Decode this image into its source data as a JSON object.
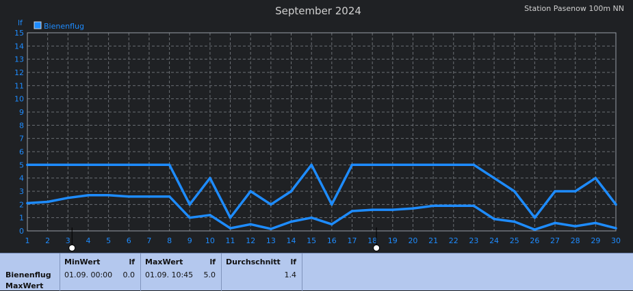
{
  "header": {
    "title": "September 2024",
    "station": "Station Pasenow 100m NN"
  },
  "chart_data": {
    "type": "line",
    "ylabel": "lf",
    "ylim": [
      0,
      15
    ],
    "y_ticks": [
      0,
      1,
      2,
      3,
      4,
      5,
      6,
      7,
      8,
      9,
      10,
      11,
      12,
      13,
      14,
      15
    ],
    "xlim": [
      1,
      30
    ],
    "x_ticks": [
      1,
      2,
      3,
      4,
      5,
      6,
      7,
      8,
      9,
      10,
      11,
      12,
      13,
      14,
      15,
      16,
      17,
      18,
      19,
      20,
      21,
      22,
      23,
      24,
      25,
      26,
      27,
      28,
      29,
      30
    ],
    "grid": true,
    "legend": {
      "entries": [
        "Bienenflug"
      ],
      "position": "top-left"
    },
    "series": [
      {
        "name": "Bienenflug",
        "x": [
          1,
          2,
          3,
          4,
          5,
          6,
          7,
          8,
          9,
          10,
          11,
          12,
          13,
          14,
          15,
          16,
          17,
          18,
          19,
          20,
          21,
          22,
          23,
          24,
          25,
          26,
          27,
          28,
          29,
          30
        ],
        "values": [
          5,
          5,
          5,
          5,
          5,
          5,
          5,
          5,
          2,
          4,
          1,
          3,
          2,
          3,
          5,
          2,
          5,
          5,
          5,
          5,
          5,
          5,
          5,
          4,
          3,
          1,
          3,
          3,
          4,
          2
        ],
        "color": "#1e8cff"
      },
      {
        "x": [
          1,
          2,
          3,
          4,
          5,
          6,
          7,
          8,
          9,
          10,
          11,
          12,
          13,
          14,
          15,
          16,
          17,
          18,
          19,
          20,
          21,
          22,
          23,
          24,
          25,
          26,
          27,
          28,
          29,
          30
        ],
        "values": [
          2.1,
          2.2,
          2.5,
          2.7,
          2.7,
          2.6,
          2.6,
          2.6,
          1.0,
          1.2,
          0.2,
          0.5,
          0.15,
          0.7,
          1.0,
          0.5,
          1.5,
          1.6,
          1.6,
          1.7,
          1.9,
          1.9,
          1.9,
          0.9,
          0.7,
          0.1,
          0.6,
          0.35,
          0.6,
          0.2
        ],
        "color": "#1e8cff"
      }
    ],
    "markers": [
      {
        "x": 3.2,
        "fill": "#ffffff",
        "stroke": "#000000"
      },
      {
        "x": 18.2,
        "fill": "#ffffff",
        "stroke": "#000000"
      }
    ],
    "colors": {
      "background": "#1f2124",
      "plot_border": "#9aa0a8",
      "grid": "#6b6f74",
      "tick_label": "#1e8cff",
      "title": "#d0d0d0"
    }
  },
  "stats": {
    "row_label_1": "Bienenflug",
    "row_label_2": "MaxWert",
    "min": {
      "header": "MinWert",
      "unit": "lf",
      "date": "01.09.  00:00",
      "value": "0.0"
    },
    "max": {
      "header": "MaxWert",
      "unit": "lf",
      "date": "01.09.  10:45",
      "value": "5.0"
    },
    "avg": {
      "header": "Durchschnitt",
      "unit": "lf",
      "value": "1.4"
    }
  }
}
